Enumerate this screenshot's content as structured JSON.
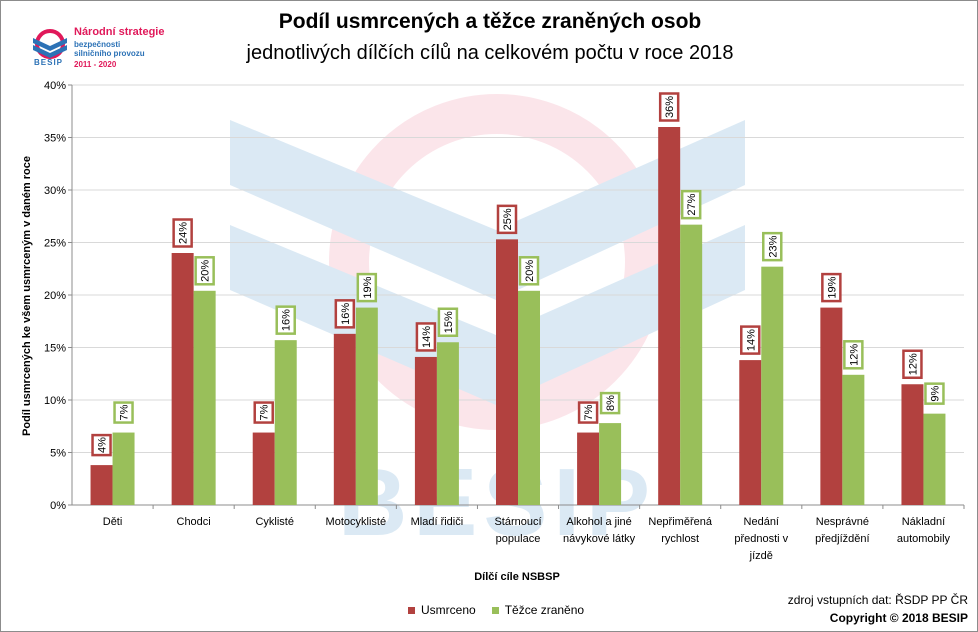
{
  "logo": {
    "line1": "Národní strategie",
    "line2": "bezpečnosti",
    "line3": "silničního provozu",
    "line4": "2011 - 2020",
    "word": "BESIP"
  },
  "watermark": "BESIP",
  "source": "zdroj vstupních dat: ŘSDP PP ČR",
  "copyright": "Copyright © 2018 BESIP",
  "colors": {
    "usmrceno": "#b2413f",
    "tezce": "#99bf5a",
    "label_red": "#b2413f",
    "label_green": "#99bf5a"
  },
  "chart_data": {
    "type": "bar",
    "title": "Podíl usmrcených a těžce zraněných osob",
    "subtitle": "jednotlivých dílčích cílů na celkovém počtu v roce 2018",
    "xlabel": "Dílčí cíle NSBSP",
    "ylabel": "Podíl usmrcených ke všem usmrceným v daném roce",
    "ylim": [
      0,
      0.4
    ],
    "yticks": [
      "0%",
      "5%",
      "10%",
      "15%",
      "20%",
      "25%",
      "30%",
      "35%",
      "40%"
    ],
    "grid": true,
    "legend_position": "bottom",
    "categories": [
      [
        "Děti"
      ],
      [
        "Chodci"
      ],
      [
        "Cyklisté"
      ],
      [
        "Motocyklisté"
      ],
      [
        "Mladí řidiči"
      ],
      [
        "Stárnoucí",
        "populace"
      ],
      [
        "Alkohol a jiné",
        "návykové látky"
      ],
      [
        "Nepřiměřená",
        "rychlost"
      ],
      [
        "Nedání",
        "přednosti v",
        "jízdě"
      ],
      [
        "Nesprávné",
        "předjíždění"
      ],
      [
        "Nákladní",
        "automobily"
      ]
    ],
    "series": [
      {
        "name": "Usmrceno",
        "values": [
          0.038,
          0.24,
          0.069,
          0.163,
          0.141,
          0.253,
          0.069,
          0.36,
          0.138,
          0.188,
          0.115
        ],
        "labels": [
          "4%",
          "24%",
          "7%",
          "16%",
          "14%",
          "25%",
          "7%",
          "36%",
          "14%",
          "19%",
          "12%"
        ]
      },
      {
        "name": "Těžce zraněno",
        "values": [
          0.069,
          0.204,
          0.157,
          0.188,
          0.155,
          0.204,
          0.078,
          0.267,
          0.227,
          0.124,
          0.087
        ],
        "labels": [
          "7%",
          "20%",
          "16%",
          "19%",
          "15%",
          "20%",
          "8%",
          "27%",
          "23%",
          "12%",
          "9%"
        ]
      }
    ]
  }
}
